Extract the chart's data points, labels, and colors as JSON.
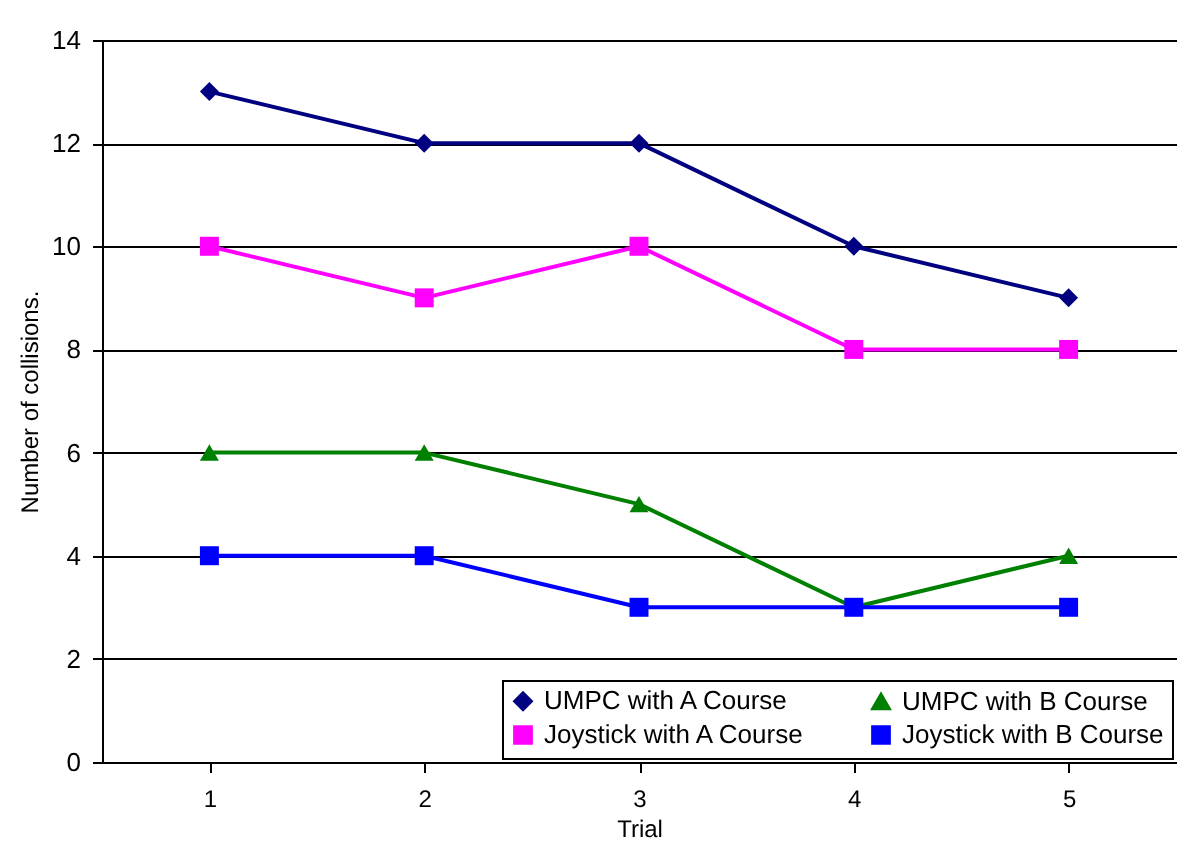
{
  "chart_data": {
    "type": "line",
    "xlabel": "Trial",
    "ylabel": "Number of collisions.",
    "categories": [
      "1",
      "2",
      "3",
      "4",
      "5"
    ],
    "series": [
      {
        "name": "UMPC with A Course",
        "color": "#000080",
        "marker": "diamond",
        "values": [
          13,
          12,
          12,
          10,
          9
        ]
      },
      {
        "name": "Joystick with A Course",
        "color": "#ff00ff",
        "marker": "square",
        "values": [
          10,
          9,
          10,
          8,
          8
        ]
      },
      {
        "name": "UMPC with B Course",
        "color": "#008000",
        "marker": "triangle",
        "values": [
          6,
          6,
          5,
          3,
          4
        ]
      },
      {
        "name": "Joystick with B Course",
        "color": "#0000ff",
        "marker": "square",
        "values": [
          4,
          4,
          3,
          3,
          3
        ]
      }
    ],
    "ylim": [
      0,
      14
    ],
    "yticks": [
      0,
      2,
      4,
      6,
      8,
      10,
      12,
      14
    ],
    "grid": "y",
    "legend": "bottom right",
    "line_style": "solid"
  }
}
